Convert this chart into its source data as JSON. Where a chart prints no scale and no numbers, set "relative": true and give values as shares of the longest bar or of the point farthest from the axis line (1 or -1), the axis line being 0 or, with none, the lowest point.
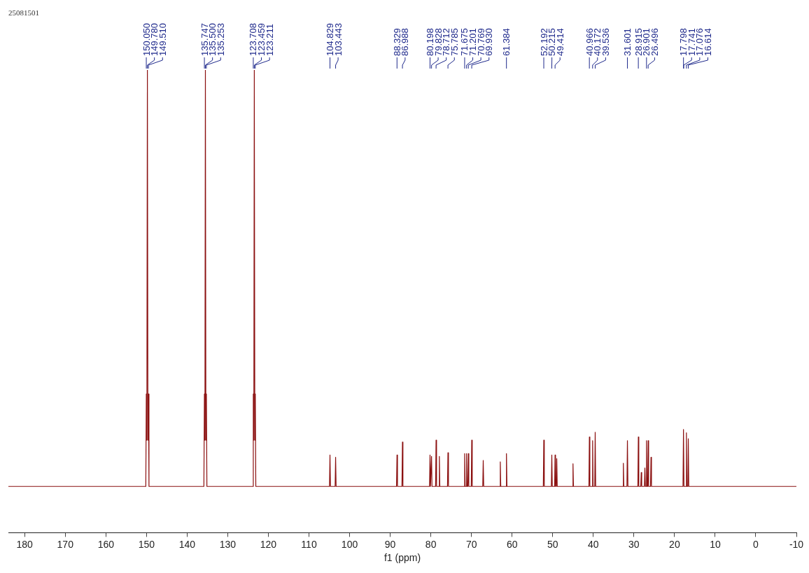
{
  "chart_data": {
    "type": "line",
    "relative": true,
    "xlabel": "f1 (ppm)",
    "xlim": [
      184,
      -10
    ],
    "xticks": [
      180,
      170,
      160,
      150,
      140,
      130,
      120,
      110,
      100,
      90,
      80,
      70,
      60,
      50,
      40,
      30,
      20,
      10,
      0,
      -10
    ],
    "series": [
      {
        "color": "#8b1010",
        "x": [
          184,
          150.17,
          150.05,
          149.92,
          149.78,
          149.65,
          149.51,
          149.39,
          135.87,
          135.747,
          135.62,
          135.5,
          135.38,
          135.253,
          135.13,
          123.83,
          123.708,
          123.58,
          123.459,
          123.33,
          123.211,
          123.09,
          104.95,
          104.829,
          104.71,
          103.56,
          103.443,
          103.32,
          88.45,
          88.329,
          88.21,
          87.11,
          86.988,
          86.87,
          80.32,
          80.198,
          80.08,
          79.95,
          79.828,
          79.71,
          78.83,
          78.712,
          78.59,
          78.02,
          77.9,
          77.78,
          75.9,
          75.785,
          75.66,
          71.8,
          71.675,
          71.55,
          71.32,
          71.201,
          71.08,
          70.89,
          70.769,
          70.65,
          70.05,
          69.93,
          69.81,
          67.22,
          67.1,
          66.98,
          63.02,
          62.9,
          62.78,
          61.5,
          61.384,
          61.26,
          52.31,
          52.192,
          52.07,
          50.33,
          50.215,
          50.1,
          49.53,
          49.414,
          49.3,
          49.12,
          49.0,
          48.88,
          45.12,
          45.0,
          44.88,
          41.08,
          40.966,
          40.85,
          40.29,
          40.172,
          40.05,
          39.65,
          39.536,
          39.42,
          32.72,
          32.6,
          32.48,
          31.72,
          31.601,
          31.48,
          29.03,
          28.915,
          28.8,
          28.32,
          28.2,
          28.08,
          27.42,
          27.3,
          27.18,
          27.02,
          26.901,
          26.78,
          26.61,
          26.496,
          26.38,
          25.92,
          25.8,
          25.68,
          17.92,
          17.798,
          17.68,
          17.19,
          17.076,
          16.96,
          16.73,
          16.614,
          16.5,
          -10
        ],
        "values": [
          0.1,
          0.1,
          0.3,
          0.2,
          1,
          0.2,
          0.3,
          0.1,
          0.1,
          0.3,
          0.2,
          1,
          0.2,
          0.3,
          0.1,
          0.1,
          0.3,
          0.2,
          1,
          0.2,
          0.3,
          0.1,
          0.1,
          0.168,
          0.1,
          0.1,
          0.163,
          0.1,
          0.1,
          0.168,
          0.1,
          0.1,
          0.196,
          0.1,
          0.1,
          0.168,
          0.1,
          0.1,
          0.165,
          0.1,
          0.1,
          0.2,
          0.1,
          0.1,
          0.165,
          0.1,
          0.1,
          0.173,
          0.1,
          0.1,
          0.171,
          0.1,
          0.1,
          0.171,
          0.1,
          0.1,
          0.171,
          0.1,
          0.1,
          0.2,
          0.1,
          0.1,
          0.156,
          0.1,
          0.1,
          0.153,
          0.1,
          0.1,
          0.171,
          0.1,
          0.1,
          0.2,
          0.1,
          0.1,
          0.168,
          0.1,
          0.1,
          0.168,
          0.1,
          0.1,
          0.16,
          0.1,
          0.1,
          0.149,
          0.1,
          0.1,
          0.207,
          0.1,
          0.1,
          0.199,
          0.1,
          0.1,
          0.217,
          0.1,
          0.1,
          0.15,
          0.1,
          0.1,
          0.199,
          0.1,
          0.1,
          0.207,
          0.1,
          0.1,
          0.13,
          0.1,
          0.1,
          0.14,
          0.1,
          0.1,
          0.199,
          0.1,
          0.1,
          0.199,
          0.1,
          0.1,
          0.163,
          0.1,
          0.1,
          0.223,
          0.1,
          0.1,
          0.216,
          0.1,
          0.1,
          0.203,
          0.1,
          0.1
        ]
      }
    ],
    "annotations": [
      "25081501",
      {
        "text": "150.050",
        "x": 150.05
      },
      {
        "text": "149.780",
        "x": 149.78
      },
      {
        "text": "149.510",
        "x": 149.51
      },
      {
        "text": "135.747",
        "x": 135.747
      },
      {
        "text": "135.500",
        "x": 135.5
      },
      {
        "text": "135.253",
        "x": 135.253
      },
      {
        "text": "123.708",
        "x": 123.708
      },
      {
        "text": "123.459",
        "x": 123.459
      },
      {
        "text": "123.211",
        "x": 123.211
      },
      {
        "text": "104.829",
        "x": 104.829
      },
      {
        "text": "103.443",
        "x": 103.443
      },
      {
        "text": "88.329",
        "x": 88.329
      },
      {
        "text": "86.988",
        "x": 86.988
      },
      {
        "text": "80.198",
        "x": 80.198
      },
      {
        "text": "79.828",
        "x": 79.828
      },
      {
        "text": "78.712",
        "x": 78.712
      },
      {
        "text": "75.785",
        "x": 75.785
      },
      {
        "text": "71.675",
        "x": 71.675
      },
      {
        "text": "71.201",
        "x": 71.201
      },
      {
        "text": "70.769",
        "x": 70.769
      },
      {
        "text": "69.930",
        "x": 69.93
      },
      {
        "text": "61.384",
        "x": 61.384
      },
      {
        "text": "52.192",
        "x": 52.192
      },
      {
        "text": "50.215",
        "x": 50.215
      },
      {
        "text": "49.414",
        "x": 49.414
      },
      {
        "text": "40.966",
        "x": 40.966
      },
      {
        "text": "40.172",
        "x": 40.172
      },
      {
        "text": "39.536",
        "x": 39.536
      },
      {
        "text": "31.601",
        "x": 31.601
      },
      {
        "text": "28.915",
        "x": 28.915
      },
      {
        "text": "26.901",
        "x": 26.901
      },
      {
        "text": "26.496",
        "x": 26.496
      },
      {
        "text": "17.798",
        "x": 17.798
      },
      {
        "text": "17.741",
        "x": 17.741
      },
      {
        "text": "17.076",
        "x": 17.076
      },
      {
        "text": "16.614",
        "x": 16.614
      }
    ]
  }
}
